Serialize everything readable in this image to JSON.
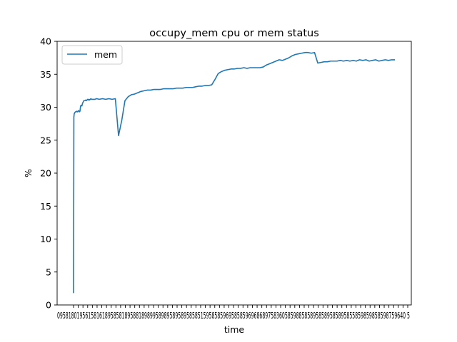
{
  "chart_data": {
    "type": "line",
    "title": "occupy_mem cpu or mem status",
    "xlabel": "time",
    "ylabel": "%",
    "ylim": [
      0,
      40
    ],
    "yticks": [
      0,
      5,
      10,
      15,
      20,
      25,
      30,
      35,
      40
    ],
    "xtick_text": "0958180195615816189585818958818989958989589589585851595858596958585969686897583605859885858958589585895855859859858598759640 5",
    "grid": false,
    "legend_position": "upper left",
    "series": [
      {
        "name": "mem",
        "color": "#1f77b4",
        "x": [
          0,
          0.5,
          1,
          2,
          3,
          4,
          5,
          6,
          7,
          8,
          9,
          10,
          11,
          12,
          13,
          14,
          15,
          16,
          17,
          18,
          19,
          20,
          21,
          22,
          23,
          24,
          25,
          26,
          27,
          28,
          30,
          33,
          36,
          40,
          45,
          50,
          55,
          60,
          65,
          70,
          75,
          80,
          85,
          90,
          95,
          100,
          105,
          110,
          115,
          120,
          125,
          130,
          135,
          140,
          145,
          150,
          155,
          160,
          165,
          170,
          175,
          180,
          185,
          190,
          195,
          200,
          205,
          210,
          215,
          220,
          225,
          230,
          235,
          240,
          245,
          250,
          255,
          260,
          265,
          270,
          275,
          280,
          285,
          290,
          295,
          300,
          305,
          310,
          315,
          320,
          325,
          330,
          335,
          340,
          345,
          350,
          355,
          360,
          365,
          370,
          375,
          380,
          385,
          390,
          395,
          400,
          405,
          410,
          415,
          420,
          425,
          430,
          435,
          440,
          445,
          450,
          455,
          460,
          465,
          470,
          475,
          480,
          485,
          490,
          495,
          500
        ],
        "values": [
          1.8,
          28.5,
          29.0,
          29.2,
          29.3,
          29.3,
          29.4,
          29.3,
          29.4,
          29.5,
          29.3,
          29.4,
          30.2,
          30.3,
          30.2,
          30.6,
          30.8,
          31.0,
          31.0,
          31.0,
          31.1,
          31.0,
          31.1,
          31.2,
          31.1,
          31.2,
          31.1,
          31.2,
          31.3,
          31.2,
          31.2,
          31.2,
          31.3,
          31.2,
          31.3,
          31.2,
          31.3,
          31.2,
          31.3,
          25.7,
          28.0,
          31.0,
          31.6,
          31.9,
          32.0,
          32.2,
          32.4,
          32.5,
          32.6,
          32.6,
          32.7,
          32.7,
          32.7,
          32.8,
          32.8,
          32.8,
          32.8,
          32.9,
          32.9,
          32.9,
          33.0,
          33.0,
          33.0,
          33.1,
          33.2,
          33.2,
          33.3,
          33.3,
          33.4,
          34.2,
          35.1,
          35.4,
          35.6,
          35.7,
          35.8,
          35.8,
          35.9,
          35.9,
          36.0,
          35.9,
          36.0,
          36.0,
          36.0,
          36.0,
          36.1,
          36.4,
          36.6,
          36.8,
          37.0,
          37.2,
          37.1,
          37.3,
          37.5,
          37.8,
          38.0,
          38.1,
          38.2,
          38.3,
          38.3,
          38.2,
          38.3,
          36.7,
          36.8,
          36.9,
          36.9,
          37.0,
          37.0,
          37.0,
          37.1,
          37.0,
          37.1,
          37.0,
          37.1,
          37.0,
          37.2,
          37.1,
          37.2,
          37.0,
          37.1,
          37.2,
          37.0,
          37.1,
          37.2,
          37.1,
          37.2,
          37.2
        ]
      }
    ]
  }
}
